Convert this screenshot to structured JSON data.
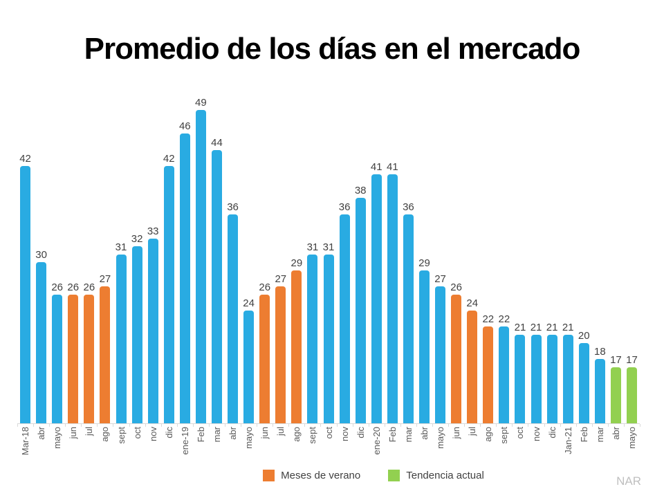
{
  "title": "Promedio de los días en el mercado",
  "watermark": "NAR",
  "legend": [
    {
      "label": "Meses de verano",
      "color": "#ED7D31"
    },
    {
      "label": "Tendencia actual",
      "color": "#92D050"
    }
  ],
  "chart_data": {
    "type": "bar",
    "title": "Promedio de los días en el mercado",
    "categories": [
      "Mar-18",
      "abr",
      "mayo",
      "jun",
      "jul",
      "ago",
      "sept",
      "oct",
      "nov",
      "dic",
      "ene-19",
      "Feb",
      "mar",
      "abr",
      "mayo",
      "jun",
      "jul",
      "ago",
      "sept",
      "oct",
      "nov",
      "dic",
      "ene-20",
      "Feb",
      "mar",
      "abr",
      "mayo",
      "jun",
      "jul",
      "ago",
      "sept",
      "oct",
      "nov",
      "dic",
      "Jan-21",
      "Feb",
      "mar",
      "abr",
      "mayo"
    ],
    "values": [
      42,
      30,
      26,
      26,
      26,
      27,
      31,
      32,
      33,
      42,
      46,
      49,
      44,
      36,
      24,
      26,
      27,
      29,
      31,
      31,
      36,
      38,
      41,
      41,
      36,
      29,
      27,
      26,
      24,
      22,
      22,
      21,
      21,
      21,
      21,
      20,
      18,
      17,
      17
    ],
    "bar_roles": [
      "default",
      "default",
      "default",
      "summer",
      "summer",
      "summer",
      "default",
      "default",
      "default",
      "default",
      "default",
      "default",
      "default",
      "default",
      "default",
      "summer",
      "summer",
      "summer",
      "default",
      "default",
      "default",
      "default",
      "default",
      "default",
      "default",
      "default",
      "default",
      "summer",
      "summer",
      "summer",
      "default",
      "default",
      "default",
      "default",
      "default",
      "default",
      "default",
      "trend",
      "trend"
    ],
    "palette": {
      "default": "#29ABE2",
      "summer": "#ED7D31",
      "trend": "#92D050"
    },
    "ylim": [
      10,
      50
    ],
    "xlabel": "",
    "ylabel": "",
    "grid": false,
    "value_labels": true,
    "legend_position": "bottom",
    "legend": [
      {
        "label": "Meses de verano",
        "color": "#ED7D31"
      },
      {
        "label": "Tendencia actual",
        "color": "#92D050"
      }
    ]
  }
}
